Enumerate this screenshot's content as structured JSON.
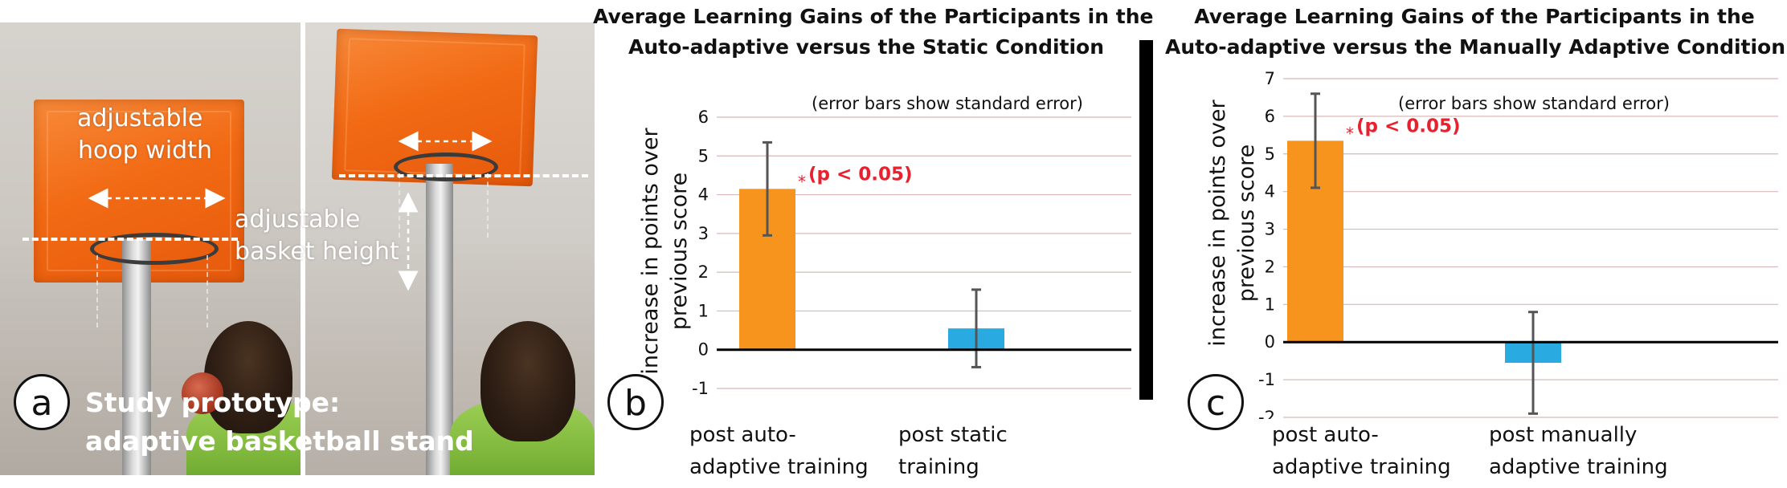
{
  "panel_a": {
    "letter": "a",
    "label_hoop": [
      "adjustable",
      "hoop width"
    ],
    "label_height": [
      "adjustable",
      "basket height"
    ],
    "caption": [
      "Study prototype:",
      "adaptive basketball stand"
    ]
  },
  "colors": {
    "bar_auto": "#f7941d",
    "bar_other": "#29abe2",
    "significance": "#e8212f",
    "gridline": "#d8b8b8",
    "error_bar": "#555555"
  },
  "chart_data": [
    {
      "panel_letter": "b",
      "type": "bar",
      "title": "Average Learning Gains of the Participants in the Auto-adaptive versus the Static Condition",
      "title_lines": [
        "Average Learning Gains of the Participants in the",
        "Auto-adaptive versus the Static Condition"
      ],
      "ylabel": "increase in points over previous score",
      "ylabel_lines": [
        "increase in points over",
        "previous score"
      ],
      "note": "(error bars show standard error)",
      "categories": [
        "post auto-adaptive training",
        "post static training"
      ],
      "category_lines": [
        [
          "post auto-",
          "adaptive training"
        ],
        [
          "post static",
          "training"
        ]
      ],
      "values": [
        4.15,
        0.55
      ],
      "error": [
        1.2,
        1.0
      ],
      "ylim": [
        -1,
        6
      ],
      "yticks": [
        -1,
        0,
        1,
        2,
        3,
        4,
        5,
        6
      ],
      "grid": true,
      "significance": {
        "bar_index": 0,
        "star": "*",
        "text": "(p < 0.05)"
      }
    },
    {
      "panel_letter": "c",
      "type": "bar",
      "title": "Average Learning Gains of the Participants in the Auto-adaptive versus the Manually Adaptive Condition",
      "title_lines": [
        "Average Learning Gains of the Participants in the",
        "Auto-adaptive versus the Manually Adaptive Condition"
      ],
      "ylabel": "increase in points over previous score",
      "ylabel_lines": [
        "increase in points over",
        "previous score"
      ],
      "note": "(error bars show standard error)",
      "categories": [
        "post auto-adaptive training",
        "post manually adaptive training"
      ],
      "category_lines": [
        [
          "post auto-",
          "adaptive training"
        ],
        [
          "post manually",
          "adaptive training"
        ]
      ],
      "values": [
        5.35,
        -0.55
      ],
      "error": [
        1.25,
        1.35
      ],
      "ylim": [
        -2,
        7
      ],
      "yticks": [
        -2,
        -1,
        0,
        1,
        2,
        3,
        4,
        5,
        6,
        7
      ],
      "grid": true,
      "significance": {
        "bar_index": 0,
        "star": "*",
        "text": "(p < 0.05)"
      }
    }
  ]
}
